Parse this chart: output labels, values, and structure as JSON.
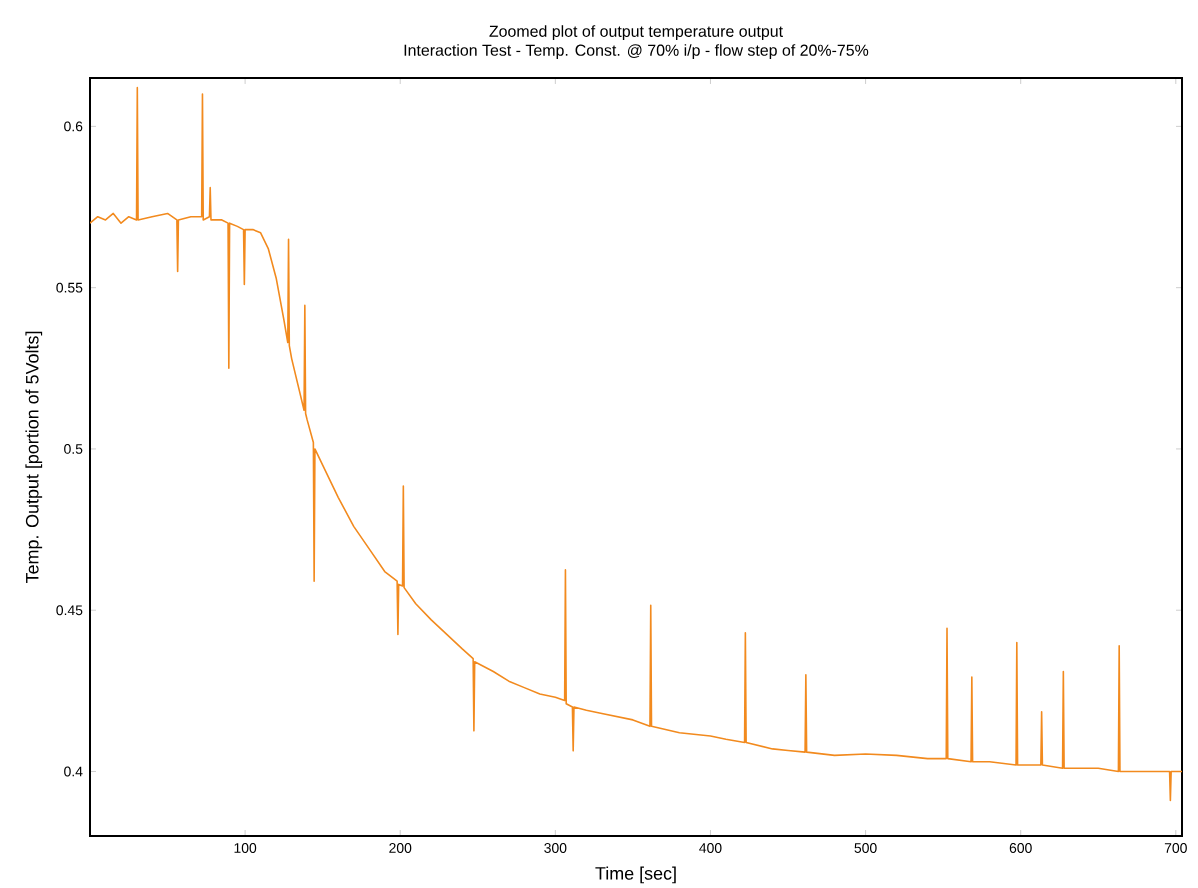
{
  "chart_data": {
    "type": "line",
    "title": "Zoomed plot of output temperature output",
    "subtitle": "Interaction Test - Temp. Const. @ 70% i/p - flow step of 20%-75%",
    "xlabel": "Time [sec]",
    "ylabel": "Temp. Output [portion of 5Volts]",
    "xlim": [
      0,
      704
    ],
    "ylim": [
      0.38,
      0.615
    ],
    "xticks": [
      100,
      200,
      300,
      400,
      500,
      600,
      700
    ],
    "yticks": [
      0.4,
      0.45,
      0.5,
      0.55,
      0.6
    ],
    "grid": false,
    "marker": "none",
    "line_style": "solid",
    "series": [
      {
        "color": "#f28a1e",
        "x": [
          0,
          5,
          10,
          15,
          20,
          25,
          30,
          30.5,
          31,
          40,
          50,
          56,
          56.5,
          57,
          65,
          72,
          72.5,
          73,
          77,
          77.5,
          78,
          85,
          89,
          89.5,
          90,
          95,
          99,
          99.5,
          100,
          105,
          110,
          115,
          120,
          125,
          127.5,
          128,
          128.5,
          130,
          135,
          138,
          138.5,
          139,
          140,
          144,
          144.5,
          145,
          150,
          160,
          170,
          180,
          190,
          198,
          198.5,
          199,
          201.5,
          202,
          202.5,
          210,
          220,
          230,
          240,
          247,
          247.5,
          248,
          260,
          270,
          280,
          290,
          300,
          306,
          306.5,
          307,
          311,
          311.5,
          312,
          320,
          330,
          340,
          350,
          361,
          361.5,
          362,
          380,
          400,
          410,
          422,
          422.5,
          423,
          440,
          450,
          461,
          461.5,
          462,
          480,
          500,
          520,
          540,
          552,
          552.5,
          553,
          568,
          568.5,
          569,
          580,
          597,
          597.5,
          598,
          613,
          613.5,
          614,
          627,
          627.5,
          628,
          640,
          650,
          663,
          663.5,
          664,
          680,
          690,
          696,
          696.5,
          697,
          704
        ],
        "values": [
          0.57,
          0.572,
          0.571,
          0.573,
          0.57,
          0.572,
          0.571,
          0.612,
          0.571,
          0.572,
          0.573,
          0.571,
          0.555,
          0.571,
          0.572,
          0.572,
          0.61,
          0.571,
          0.572,
          0.581,
          0.571,
          0.571,
          0.57,
          0.525,
          0.57,
          0.569,
          0.568,
          0.551,
          0.568,
          0.568,
          0.567,
          0.562,
          0.553,
          0.54,
          0.533,
          0.565,
          0.532,
          0.528,
          0.518,
          0.512,
          0.5445,
          0.511,
          0.509,
          0.502,
          0.459,
          0.5,
          0.495,
          0.485,
          0.476,
          0.469,
          0.462,
          0.459,
          0.4425,
          0.458,
          0.4575,
          0.4885,
          0.457,
          0.452,
          0.447,
          0.4425,
          0.438,
          0.435,
          0.4126,
          0.434,
          0.431,
          0.428,
          0.426,
          0.424,
          0.423,
          0.422,
          0.4625,
          0.421,
          0.42,
          0.4064,
          0.42,
          0.419,
          0.418,
          0.417,
          0.416,
          0.414,
          0.4515,
          0.414,
          0.412,
          0.411,
          0.41,
          0.409,
          0.443,
          0.409,
          0.407,
          0.4065,
          0.406,
          0.43,
          0.406,
          0.405,
          0.4054,
          0.405,
          0.404,
          0.404,
          0.4444,
          0.404,
          0.403,
          0.4293,
          0.403,
          0.403,
          0.402,
          0.44,
          0.402,
          0.402,
          0.4185,
          0.402,
          0.401,
          0.431,
          0.401,
          0.401,
          0.401,
          0.4,
          0.439,
          0.4,
          0.4,
          0.4,
          0.4,
          0.391,
          0.4,
          0.4
        ]
      }
    ]
  }
}
